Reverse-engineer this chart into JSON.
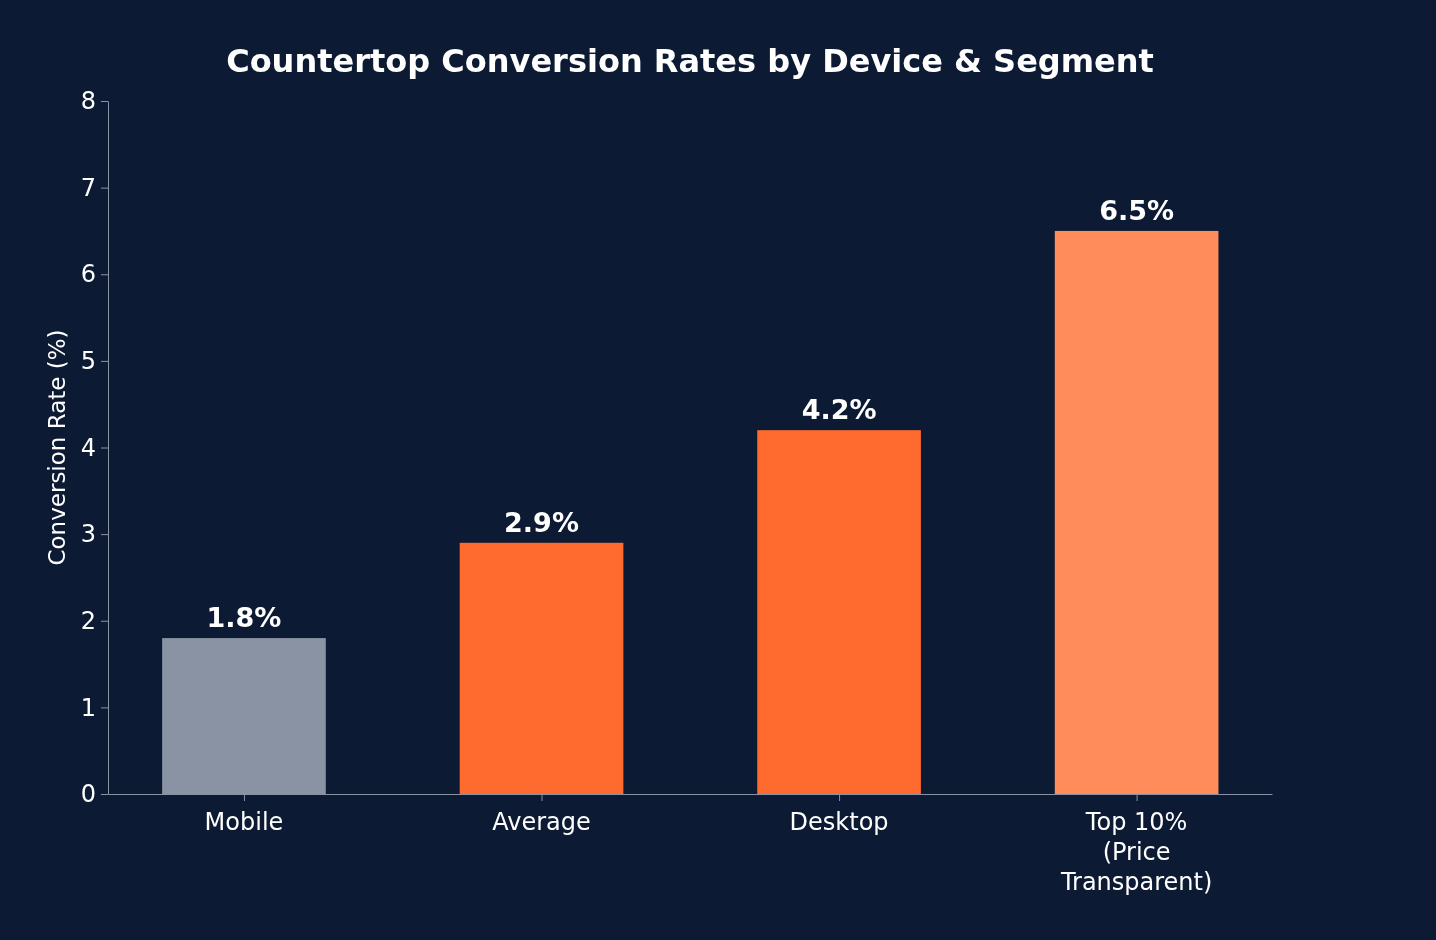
{
  "chart_data": {
    "type": "bar",
    "title": "Countertop Conversion Rates by Device & Segment",
    "ylabel": "Conversion Rate (%)",
    "categories": [
      "Mobile",
      "Average",
      "Desktop",
      "Top 10%\n(Price\nTransparent)"
    ],
    "values": [
      1.8,
      2.9,
      4.2,
      6.5
    ],
    "colors": [
      "#8a93a3",
      "#ff6b2e",
      "#ff6b2e",
      "#ff8c5a"
    ],
    "value_labels": [
      "1.8%",
      "2.9%",
      "4.2%",
      "6.5%"
    ],
    "ylim": [
      0,
      8
    ],
    "yticks": [
      0,
      1,
      2,
      3,
      4,
      5,
      6,
      7,
      8
    ]
  }
}
